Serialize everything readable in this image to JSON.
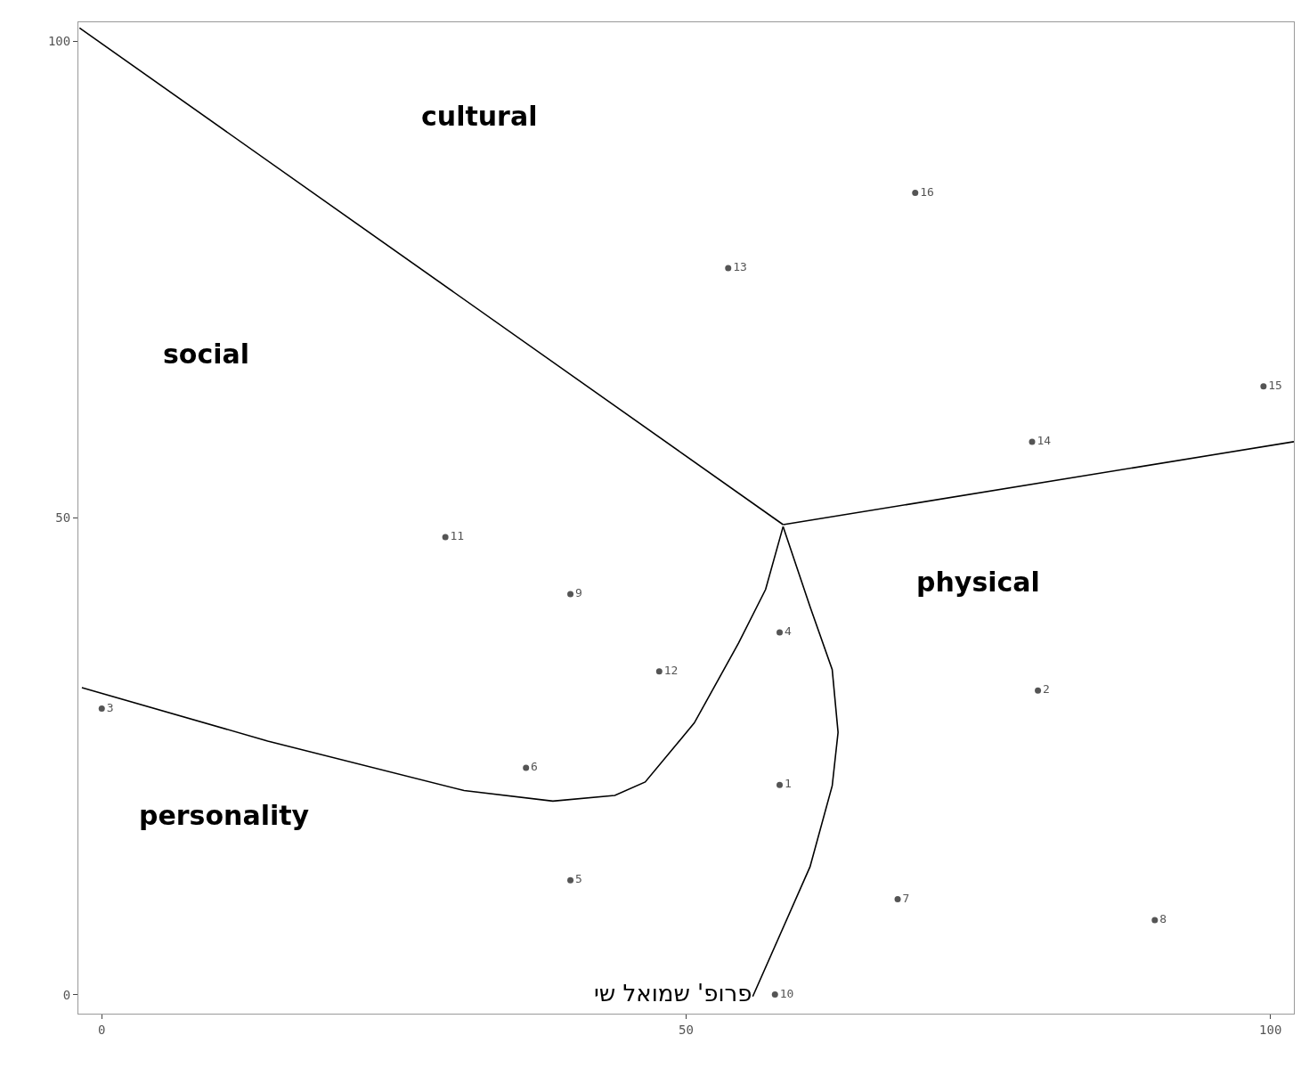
{
  "chart_data": {
    "type": "scatter",
    "marker": "circle",
    "grid": false,
    "xlim": [
      -2,
      102
    ],
    "ylim": [
      -2,
      102
    ],
    "xticks": [
      0,
      50,
      100
    ],
    "yticks": [
      0,
      50,
      100
    ],
    "series": [
      {
        "name": "1",
        "color": "#555555",
        "x": [
          58
        ],
        "values": [
          22
        ]
      },
      {
        "name": "2",
        "color": "#555555",
        "x": [
          80.1
        ],
        "values": [
          31.9
        ]
      },
      {
        "name": "3",
        "color": "#555555",
        "x": [
          0
        ],
        "values": [
          30
        ]
      },
      {
        "name": "4",
        "color": "#555555",
        "x": [
          58
        ],
        "values": [
          38
        ]
      },
      {
        "name": "5",
        "color": "#555555",
        "x": [
          40.1
        ],
        "values": [
          12
        ]
      },
      {
        "name": "6",
        "color": "#555555",
        "x": [
          36.3
        ],
        "values": [
          23.8
        ]
      },
      {
        "name": "7",
        "color": "#555555",
        "x": [
          68.1
        ],
        "values": [
          10
        ]
      },
      {
        "name": "8",
        "color": "#555555",
        "x": [
          90.1
        ],
        "values": [
          7.8
        ]
      },
      {
        "name": "9",
        "color": "#555555",
        "x": [
          40.1
        ],
        "values": [
          42
        ]
      },
      {
        "name": "10",
        "color": "#555555",
        "x": [
          57.6
        ],
        "values": [
          0
        ]
      },
      {
        "name": "11",
        "color": "#555555",
        "x": [
          29.4
        ],
        "values": [
          48
        ]
      },
      {
        "name": "12",
        "color": "#555555",
        "x": [
          47.7
        ],
        "values": [
          33.9
        ]
      },
      {
        "name": "13",
        "color": "#555555",
        "x": [
          53.6
        ],
        "values": [
          76.2
        ]
      },
      {
        "name": "14",
        "color": "#555555",
        "x": [
          79.6
        ],
        "values": [
          58
        ]
      },
      {
        "name": "15",
        "color": "#555555",
        "x": [
          99.4
        ],
        "values": [
          63.8
        ]
      },
      {
        "name": "16",
        "color": "#555555",
        "x": [
          69.6
        ],
        "values": [
          84.1
        ]
      },
      {
        "type": "line",
        "marker": "none",
        "color": "#000000",
        "x": [
          -1.9,
          58.3
        ],
        "values": [
          101.4,
          49.3
        ]
      },
      {
        "type": "line",
        "marker": "none",
        "color": "#000000",
        "x": [
          58.3,
          102
        ],
        "values": [
          49.3,
          58
        ]
      },
      {
        "type": "line",
        "marker": "none",
        "color": "#000000",
        "x": [
          -1.7,
          14.2,
          31,
          38.6,
          43.9,
          46.5,
          50.7,
          54.5,
          56.8,
          58.3
        ],
        "values": [
          32.2,
          26.6,
          21.4,
          20.3,
          20.9,
          22.3,
          28.5,
          36.9,
          42.5,
          49.1
        ]
      },
      {
        "type": "line",
        "marker": "none",
        "color": "#000000",
        "x": [
          58.3,
          60.6,
          62.5,
          63,
          62.5,
          60.6,
          55.7
        ],
        "values": [
          49.1,
          40.7,
          34.1,
          27.5,
          21.9,
          13.4,
          -0.2
        ]
      }
    ],
    "annotations": [
      "cultural",
      "social",
      "physical",
      "personality",
      "פרופ' שמואל שי"
    ]
  }
}
